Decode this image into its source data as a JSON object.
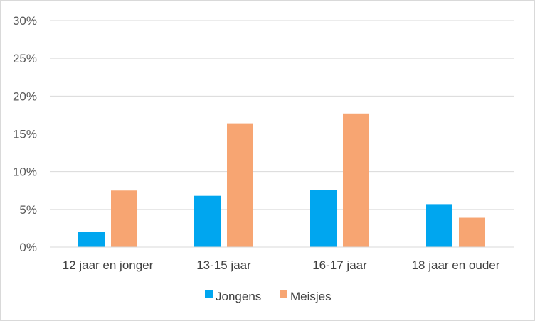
{
  "chart_data": {
    "type": "bar",
    "categories": [
      "12 jaar en jonger",
      "13-15 jaar",
      "16-17 jaar",
      "18 jaar en ouder"
    ],
    "series": [
      {
        "name": "Jongens",
        "values": [
          2.0,
          6.8,
          7.6,
          5.7
        ],
        "color": "#00a6ef"
      },
      {
        "name": "Meisjes",
        "values": [
          7.5,
          16.4,
          17.7,
          3.9
        ],
        "color": "#f7a572"
      }
    ],
    "yticks": [
      "0%",
      "5%",
      "10%",
      "15%",
      "20%",
      "25%",
      "30%"
    ],
    "ylim": [
      0,
      30
    ],
    "grid": true,
    "legend_position": "bottom",
    "title": "",
    "xlabel": "",
    "ylabel": ""
  }
}
